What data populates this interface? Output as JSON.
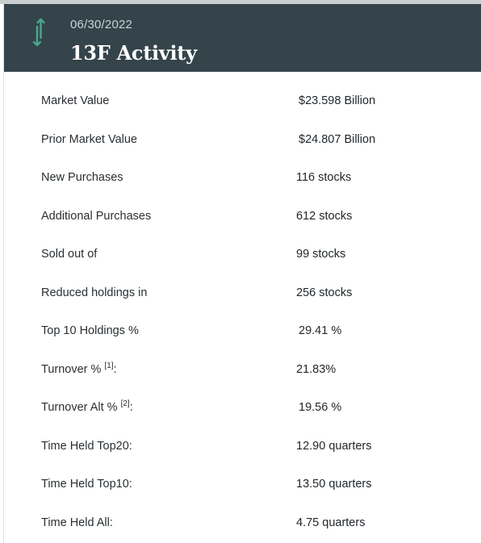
{
  "header": {
    "date": "06/30/2022",
    "title": "13F Activity",
    "icon": "up-down-arrows-icon",
    "background": "#35444b",
    "icon_color": "#4aa88a"
  },
  "rows": [
    {
      "label": "Market Value",
      "value": "$23.598 Billion"
    },
    {
      "label": "Prior Market Value",
      "value": "$24.807 Billion"
    },
    {
      "label": "New Purchases",
      "value": "116 stocks"
    },
    {
      "label": "Additional Purchases",
      "value": "612 stocks"
    },
    {
      "label": "Sold out of",
      "value": "99 stocks"
    },
    {
      "label": "Reduced holdings in",
      "value": "256 stocks"
    },
    {
      "label": "Top 10 Holdings %",
      "value": "29.41 %"
    },
    {
      "label": "Turnover %",
      "footnote": "[1]",
      "suffix": ":",
      "value": "21.83%"
    },
    {
      "label": "Turnover Alt %",
      "footnote": "[2]",
      "suffix": ":",
      "value": "19.56 %"
    },
    {
      "label": "Time Held Top20:",
      "value": "12.90 quarters"
    },
    {
      "label": "Time Held Top10:",
      "value": "13.50 quarters"
    },
    {
      "label": "Time Held All:",
      "value": "4.75 quarters"
    }
  ]
}
